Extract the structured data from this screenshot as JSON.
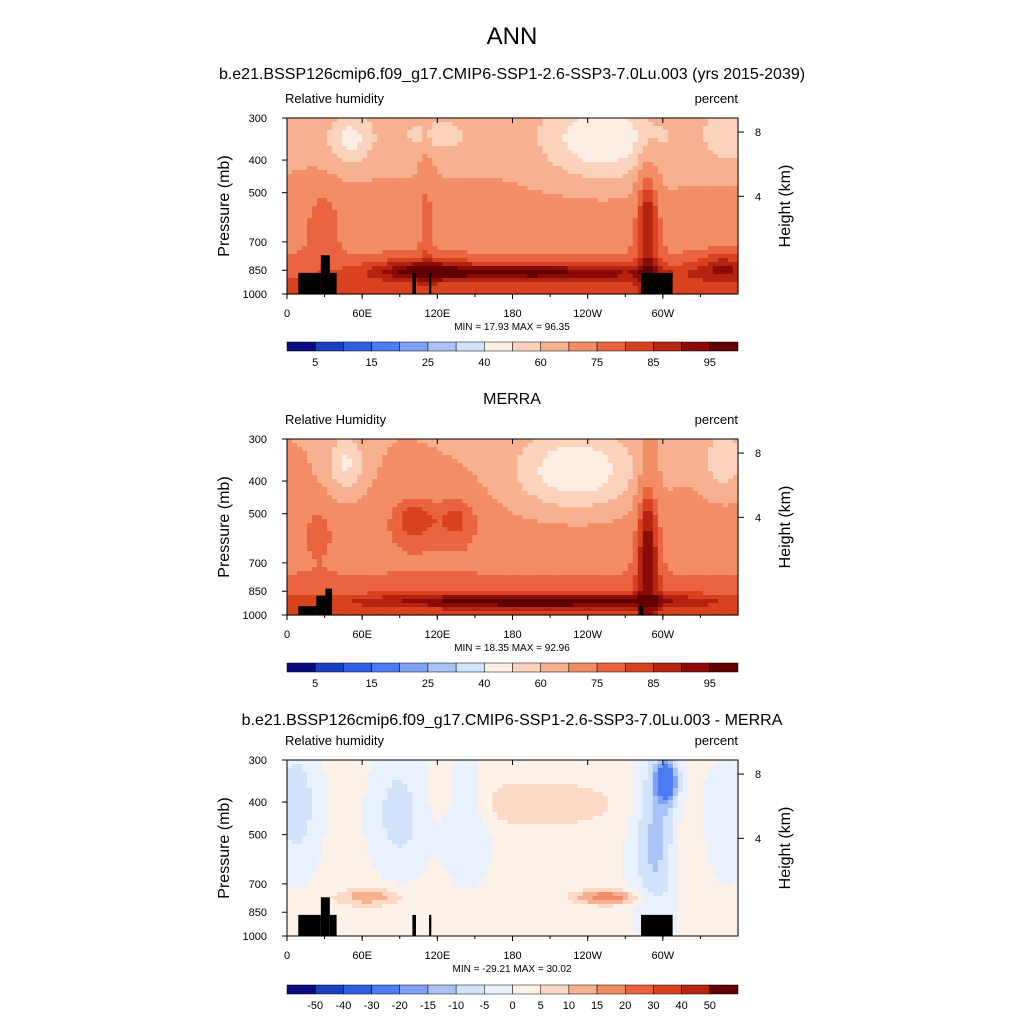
{
  "page": {
    "title": "ANN",
    "subtitle": "b.e21.BSSP126cmip6.f09_g17.CMIP6-SSP1-2.6-SSP3-7.0Lu.003 (yrs 2015-2039)"
  },
  "colors": {
    "model_scale": [
      "#0a0a80",
      "#1a3fbf",
      "#2e5fe0",
      "#4d7cf2",
      "#7fa2f5",
      "#a9c3f7",
      "#d0e3fb",
      "#fdeee4",
      "#fbd2bb",
      "#f7b090",
      "#f28d66",
      "#ea6440",
      "#d9421f",
      "#b52410",
      "#8b0c06",
      "#600000"
    ],
    "diff_scale": [
      "#0a0a80",
      "#1a3fbf",
      "#2e5fe0",
      "#4d7cf2",
      "#7fa2f5",
      "#a9c3f7",
      "#d0e3fb",
      "#e8f1fd",
      "#fdf2ea",
      "#fbd9c5",
      "#f7b090",
      "#f28d66",
      "#ea6440",
      "#d9421f",
      "#b52410",
      "#600000"
    ],
    "topography": "#000000"
  },
  "chart_data": [
    {
      "type": "heatmap",
      "title": "",
      "left_label": "Relative humidity",
      "right_label": "percent",
      "ylabel": "Pressure (mb)",
      "right_axis_label": "Height (km)",
      "x_ticks": [
        "0",
        "60E",
        "120E",
        "180",
        "120W",
        "60W"
      ],
      "y_ticks": [
        "300",
        "400",
        "500",
        "700",
        "850",
        "1000"
      ],
      "right_ticks": [
        "8",
        "4"
      ],
      "stats": "MIN = 17.93  MAX = 96.35",
      "min": 17.93,
      "max": 96.35,
      "colorbar_labels": [
        "5",
        "15",
        "25",
        "40",
        "60",
        "75",
        "85",
        "95"
      ],
      "legend": "bottom"
    },
    {
      "type": "heatmap",
      "title": "MERRA",
      "left_label": "Relative Humidity",
      "right_label": "percent",
      "ylabel": "Pressure (mb)",
      "right_axis_label": "Height (km)",
      "x_ticks": [
        "0",
        "60E",
        "120E",
        "180",
        "120W",
        "60W"
      ],
      "y_ticks": [
        "300",
        "400",
        "500",
        "700",
        "850",
        "1000"
      ],
      "right_ticks": [
        "8",
        "4"
      ],
      "stats": "MIN = 18.35  MAX = 92.96",
      "min": 18.35,
      "max": 92.96,
      "colorbar_labels": [
        "5",
        "15",
        "25",
        "40",
        "60",
        "75",
        "85",
        "95"
      ],
      "legend": "bottom"
    },
    {
      "type": "heatmap",
      "title": "b.e21.BSSP126cmip6.f09_g17.CMIP6-SSP1-2.6-SSP3-7.0Lu.003 - MERRA",
      "left_label": "Relative humidity",
      "right_label": "percent",
      "ylabel": "Pressure (mb)",
      "right_axis_label": "Height (km)",
      "x_ticks": [
        "0",
        "60E",
        "120E",
        "180",
        "120W",
        "60W"
      ],
      "y_ticks": [
        "300",
        "400",
        "500",
        "700",
        "850",
        "1000"
      ],
      "right_ticks": [
        "8",
        "4"
      ],
      "stats": "MIN = -29.21  MAX = 30.02",
      "min": -29.21,
      "max": 30.02,
      "colorbar_labels": [
        "-50",
        "-40",
        "-30",
        "-20",
        "-15",
        "-10",
        "-5",
        "0",
        "5",
        "10",
        "15",
        "20",
        "30",
        "40",
        "50"
      ],
      "legend": "bottom"
    }
  ]
}
